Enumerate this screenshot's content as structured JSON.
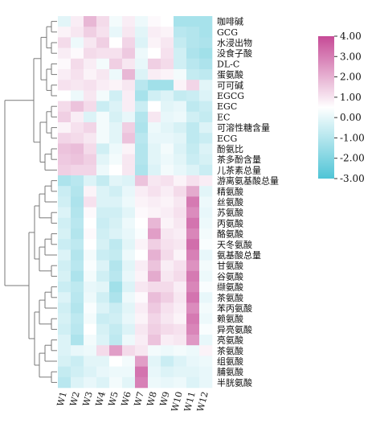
{
  "chart_data": {
    "type": "heatmap",
    "rows": [
      "咖啡碱",
      "GCG",
      "水浸出物",
      "没食子酸",
      "DL-C",
      "蛋氨酸",
      "可可碱",
      "EGCG",
      "EGC",
      "EC",
      "可溶性糖含量",
      "ECG",
      "酚氨比",
      "茶多酚含量",
      "儿茶素总量",
      "游离氨基酸总量",
      "精氨酸",
      "丝氨酸",
      "苏氨酸",
      "丙氨酸",
      "酪氨酸",
      "天冬氨酸",
      "氨基酸总量",
      "甘氨酸",
      "谷氨酸",
      "缬氨酸",
      "茶氨酸",
      "苯丙氨酸",
      "赖氨酸",
      "异亮氨酸",
      "亮氨酸",
      "茶氨酸",
      "组氨酸",
      "脯氨酸",
      "半胱氨酸"
    ],
    "columns": [
      "W1",
      "W2",
      "W3",
      "W4",
      "W5",
      "W6",
      "W7",
      "W8",
      "W9",
      "W10",
      "W11",
      "W12"
    ],
    "values": [
      [
        -0.5,
        0.3,
        1.2,
        0.6,
        -0.2,
        0.3,
        -0.3,
        0.1,
        0.0,
        -1.5,
        -1.5,
        -1.5
      ],
      [
        0.2,
        0.4,
        0.8,
        0.5,
        -0.4,
        0.4,
        -0.5,
        0.3,
        0.2,
        -1.2,
        -1.3,
        -1.5
      ],
      [
        0.6,
        -0.3,
        0.4,
        0.8,
        0.0,
        0.7,
        -0.6,
        0.2,
        0.4,
        -1.0,
        -1.3,
        -1.4
      ],
      [
        0.3,
        0.1,
        0.6,
        0.5,
        0.5,
        0.9,
        -0.3,
        0.0,
        0.5,
        -0.8,
        -1.4,
        -1.6
      ],
      [
        0.1,
        0.6,
        0.3,
        -0.2,
        0.8,
        0.4,
        -0.4,
        0.8,
        0.6,
        -0.8,
        -1.2,
        -1.4
      ],
      [
        0.3,
        0.5,
        0.2,
        0.4,
        -0.3,
        1.2,
        -0.6,
        0.3,
        0.2,
        -0.2,
        -1.0,
        -1.1
      ],
      [
        0.5,
        0.4,
        0.5,
        0.3,
        0.2,
        0.4,
        -1.2,
        -1.6,
        -1.6,
        0.2,
        0.7,
        -0.5
      ],
      [
        0.0,
        -0.3,
        0.4,
        -0.2,
        -0.8,
        0.3,
        -1.5,
        -0.8,
        -0.6,
        -1.0,
        -0.9,
        -0.6
      ],
      [
        0.6,
        1.0,
        0.6,
        -0.9,
        -0.6,
        0.3,
        -0.9,
        0.0,
        -0.5,
        -0.4,
        -1.1,
        -0.9
      ],
      [
        0.8,
        0.3,
        -0.6,
        -0.2,
        -0.7,
        -0.4,
        -1.3,
        0.4,
        -0.4,
        -0.3,
        -0.8,
        -1.0
      ],
      [
        0.2,
        0.5,
        0.7,
        -0.2,
        -0.5,
        0.8,
        -1.4,
        -0.3,
        -0.5,
        -0.7,
        -1.1,
        -0.6
      ],
      [
        0.7,
        0.6,
        0.4,
        -0.2,
        -0.5,
        1.0,
        -1.2,
        -0.4,
        -0.4,
        -0.5,
        -1.1,
        -0.9
      ],
      [
        1.0,
        1.1,
        0.6,
        -0.8,
        -0.3,
        0.2,
        -1.3,
        -0.5,
        -0.2,
        -0.6,
        -1.0,
        -0.6
      ],
      [
        0.9,
        1.0,
        0.8,
        -0.5,
        -0.2,
        0.4,
        -1.3,
        -0.5,
        -0.3,
        -0.5,
        -0.9,
        -0.7
      ],
      [
        0.8,
        0.7,
        0.7,
        -0.3,
        0.0,
        0.4,
        -1.4,
        -0.6,
        -0.2,
        -0.4,
        -0.6,
        -0.9
      ],
      [
        -1.4,
        -1.2,
        -0.6,
        -1.0,
        -0.5,
        -0.6,
        1.0,
        0.4,
        0.5,
        0.2,
        0.5,
        0.3
      ],
      [
        -0.9,
        -1.3,
        0.2,
        -0.6,
        -0.8,
        -0.4,
        0.3,
        0.5,
        0.3,
        0.6,
        1.4,
        -0.5
      ],
      [
        -0.8,
        -1.4,
        0.5,
        -0.6,
        -0.6,
        -0.3,
        0.2,
        0.3,
        0.2,
        0.4,
        2.2,
        -0.3
      ],
      [
        -0.6,
        -1.3,
        0.1,
        -0.8,
        -0.8,
        -0.5,
        0.1,
        0.2,
        0.3,
        0.5,
        1.9,
        -0.4
      ],
      [
        -0.8,
        -1.2,
        0.0,
        -0.9,
        -0.7,
        -0.3,
        0.0,
        1.2,
        0.2,
        0.4,
        2.3,
        -0.3
      ],
      [
        -0.7,
        -1.3,
        0.1,
        -0.8,
        -0.6,
        -0.4,
        -0.1,
        1.6,
        0.4,
        0.3,
        2.0,
        -0.2
      ],
      [
        -0.9,
        -1.1,
        0.0,
        -0.7,
        -1.1,
        -0.5,
        0.2,
        0.8,
        0.5,
        0.4,
        2.4,
        -0.1
      ],
      [
        -0.6,
        -1.3,
        -0.2,
        -0.9,
        -1.0,
        -0.3,
        0.0,
        1.3,
        0.6,
        0.2,
        2.1,
        -0.4
      ],
      [
        -0.8,
        -1.2,
        -0.1,
        -0.6,
        -1.3,
        -0.5,
        0.3,
        1.0,
        0.3,
        0.5,
        1.8,
        -0.2
      ],
      [
        -0.7,
        -1.4,
        -0.2,
        -0.8,
        -1.2,
        -0.4,
        0.2,
        1.4,
        0.4,
        0.6,
        2.2,
        -0.3
      ],
      [
        -0.9,
        -1.1,
        -0.4,
        -0.5,
        -1.6,
        -0.6,
        0.4,
        0.6,
        0.6,
        0.3,
        2.0,
        -0.1
      ],
      [
        -0.6,
        -1.2,
        -0.3,
        -0.8,
        -1.4,
        -0.3,
        0.1,
        1.1,
        0.8,
        0.4,
        2.3,
        -0.4
      ],
      [
        -0.8,
        -1.3,
        -0.1,
        -0.6,
        -0.9,
        -0.5,
        0.3,
        0.9,
        0.5,
        0.3,
        1.9,
        -0.2
      ],
      [
        -0.7,
        -1.1,
        -0.2,
        -0.9,
        -0.8,
        -0.4,
        0.2,
        0.7,
        0.4,
        0.2,
        2.2,
        -0.3
      ],
      [
        -0.8,
        -1.2,
        0.0,
        -0.7,
        -1.0,
        -0.6,
        0.4,
        0.8,
        0.6,
        0.5,
        2.0,
        -0.1
      ],
      [
        -0.6,
        -1.4,
        -0.2,
        -0.6,
        -1.1,
        -0.3,
        0.3,
        1.0,
        0.3,
        0.4,
        1.7,
        -0.4
      ],
      [
        -0.6,
        -0.4,
        -0.3,
        0.6,
        1.6,
        0.6,
        0.4,
        -0.2,
        -0.3,
        -0.2,
        -0.3,
        0.2
      ],
      [
        -0.7,
        -0.9,
        -0.5,
        -0.5,
        0.0,
        -0.2,
        1.6,
        -0.5,
        -0.9,
        -0.6,
        -0.4,
        -0.3
      ],
      [
        -1.0,
        -0.8,
        -0.6,
        -0.4,
        -0.3,
        -0.3,
        2.3,
        -0.4,
        -0.6,
        -0.5,
        -0.5,
        -0.4
      ],
      [
        -1.2,
        -0.6,
        -0.4,
        -0.6,
        -0.2,
        -0.5,
        2.1,
        -0.3,
        -0.4,
        -0.3,
        -0.6,
        -0.4
      ]
    ],
    "color_scale": {
      "min": -3,
      "max": 3,
      "low": "#4fc4d6",
      "mid": "#ffffff",
      "high": "#c64a96"
    },
    "colorbar_ticks": [
      "4.00",
      "3.00",
      "2.00",
      "1.00",
      "0.00",
      "-1.00",
      "-2.00",
      "-3.00"
    ],
    "legend_placement": "top-right",
    "row_dendrogram": "left"
  }
}
